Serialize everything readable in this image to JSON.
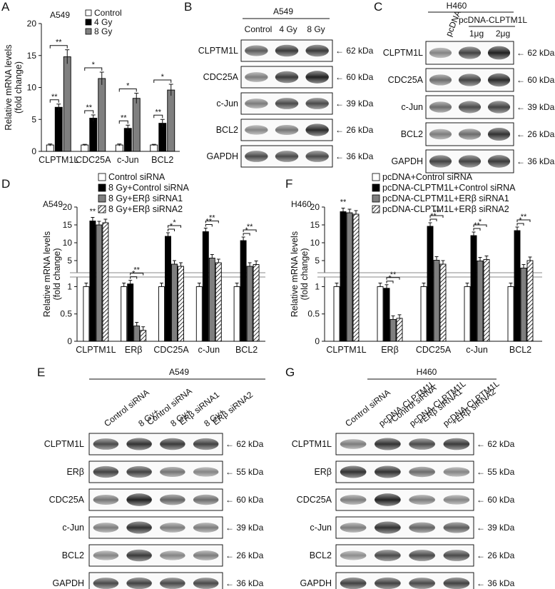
{
  "panel_letters": [
    "A",
    "B",
    "C",
    "D",
    "E",
    "F",
    "G"
  ],
  "chart_data": [
    {
      "panel": "A",
      "type": "bar",
      "cell_line": "A549",
      "ylabel": "Relative mRNA levels\n(fold change)",
      "categories": [
        "CLPTM1L",
        "CDC25A",
        "c-Jun",
        "BCL2"
      ],
      "ylim": [
        0,
        20
      ],
      "yticks": [
        0,
        5,
        10,
        15,
        20
      ],
      "series": [
        {
          "name": "Control",
          "color": "#ffffff",
          "values": [
            1.0,
            1.0,
            1.0,
            1.0
          ],
          "err": [
            0.15,
            0.1,
            0.15,
            0.1
          ]
        },
        {
          "name": "4 Gy",
          "color": "#000000",
          "values": [
            6.9,
            5.2,
            3.6,
            4.4
          ],
          "err": [
            0.5,
            0.5,
            0.5,
            0.6
          ]
        },
        {
          "name": "8 Gy",
          "color": "#7f7f7f",
          "values": [
            14.8,
            11.4,
            8.3,
            9.6
          ],
          "err": [
            1.1,
            1.0,
            0.8,
            0.9
          ]
        }
      ],
      "significance": [
        "**",
        "**",
        "**",
        "*",
        "**",
        "*",
        "**",
        "*"
      ]
    },
    {
      "panel": "D",
      "type": "bar",
      "cell_line": "A549",
      "ylabel": "Relative mRNA levels\n(fold change)",
      "categories": [
        "CLPTM1L",
        "ERβ",
        "CDC25A",
        "c-Jun",
        "BCL2"
      ],
      "broken_axis": true,
      "yticks_upper": [
        5,
        10,
        15,
        20
      ],
      "yticks_lower": [
        0,
        0.5,
        1
      ],
      "series": [
        {
          "name": "Control siRNA",
          "pattern": "white",
          "values": [
            1.0,
            1.0,
            1.0,
            1.0,
            1.0
          ]
        },
        {
          "name": "8 Gy+Control siRNA",
          "pattern": "black",
          "values": [
            16.1,
            1.05,
            11.8,
            13.1,
            10.6
          ]
        },
        {
          "name": "8 Gy+ERβ siRNA1",
          "pattern": "gray",
          "values": [
            15.0,
            0.28,
            4.0,
            5.7,
            3.4
          ]
        },
        {
          "name": "8 Gy+ERβ siRNA2",
          "pattern": "hatch",
          "values": [
            15.6,
            0.2,
            3.4,
            4.4,
            3.9
          ]
        }
      ],
      "significance": [
        "**",
        "*",
        "**",
        "*",
        "*",
        "**",
        "**",
        "*",
        "**",
        "*",
        "**"
      ]
    },
    {
      "panel": "F",
      "type": "bar",
      "cell_line": "H460",
      "ylabel": "Relative mRNA levels\n(fold change)",
      "categories": [
        "CLPTM1L",
        "ERβ",
        "CDC25A",
        "c-Jun",
        "BCL2"
      ],
      "broken_axis": true,
      "yticks_upper": [
        5,
        10,
        15,
        20
      ],
      "yticks_lower": [
        0,
        0.5,
        1
      ],
      "series": [
        {
          "name": "pcDNA+Control siRNA",
          "pattern": "white",
          "values": [
            1.0,
            1.0,
            1.0,
            1.0,
            1.0
          ]
        },
        {
          "name": "pcDNA-CLPTM1L+Control siRNA",
          "pattern": "black",
          "values": [
            18.7,
            0.97,
            14.6,
            12.0,
            13.4
          ]
        },
        {
          "name": "pcDNA-CLPTM1L+ERβ siRNA1",
          "pattern": "gray",
          "values": [
            18.4,
            0.4,
            5.1,
            4.9,
            2.9
          ]
        },
        {
          "name": "pcDNA-CLPTM1L+ERβ siRNA2",
          "pattern": "hatch",
          "values": [
            18.0,
            0.42,
            4.0,
            5.3,
            5.0
          ]
        }
      ],
      "significance": [
        "**",
        "*",
        "**",
        "**",
        "**",
        "**",
        "*",
        "*",
        "**",
        "*",
        "*"
      ]
    }
  ],
  "blots": {
    "B": {
      "cell_line": "A549",
      "lanes": [
        "Control",
        "4 Gy",
        "8 Gy"
      ],
      "proteins": [
        {
          "name": "CLPTM1L",
          "kda": "← 62 kDa"
        },
        {
          "name": "CDC25A",
          "kda": "← 60 kDa"
        },
        {
          "name": "c-Jun",
          "kda": "← 39 kDa"
        },
        {
          "name": "BCL2",
          "kda": "← 26 kDa"
        },
        {
          "name": "GAPDH",
          "kda": "← 36 kDa"
        }
      ]
    },
    "C": {
      "cell_line": "H460",
      "lane1": "pcDNA",
      "group": "pcDNA-CLPTM1L",
      "sublanes": [
        "1μg",
        "2μg"
      ],
      "proteins": [
        {
          "name": "CLPTM1L",
          "kda": "← 62 kDa"
        },
        {
          "name": "CDC25A",
          "kda": "← 60 kDa"
        },
        {
          "name": "c-Jun",
          "kda": "← 39 kDa"
        },
        {
          "name": "BCL2",
          "kda": "← 26 kDa"
        },
        {
          "name": "GAPDH",
          "kda": "← 36 kDa"
        }
      ]
    },
    "E": {
      "cell_line": "A549",
      "lanes": [
        [
          "Control siRNA"
        ],
        [
          "8 Gy+",
          "Control siRNA"
        ],
        [
          "8 Gy+",
          "ERβ siRNA1"
        ],
        [
          "8 Gy+",
          "ERβ siRNA2"
        ]
      ],
      "proteins": [
        {
          "name": "CLPTM1L",
          "kda": "← 62 kDa"
        },
        {
          "name": "ERβ",
          "kda": "← 55 kDa"
        },
        {
          "name": "CDC25A",
          "kda": "← 60 kDa"
        },
        {
          "name": "c-Jun",
          "kda": "← 39 kDa"
        },
        {
          "name": "BCL2",
          "kda": "← 26 kDa"
        },
        {
          "name": "GAPDH",
          "kda": "← 36 kDa"
        }
      ]
    },
    "G": {
      "cell_line": "H460",
      "lanes": [
        [
          "Control siRNA"
        ],
        [
          "pcDNA-CLPTM1L",
          "+Control siRNA"
        ],
        [
          "pcDNA-CLPTM1L",
          "+ERβ siRNA1"
        ],
        [
          "pcDNA-CLPTM1L",
          "+ERβ siRNA2"
        ]
      ],
      "proteins": [
        {
          "name": "CLPTM1L",
          "kda": "← 62 kDa"
        },
        {
          "name": "ERβ",
          "kda": "← 55 kDa"
        },
        {
          "name": "CDC25A",
          "kda": "← 60 kDa"
        },
        {
          "name": "c-Jun",
          "kda": "← 39 kDa"
        },
        {
          "name": "BCL2",
          "kda": "← 26 kDa"
        },
        {
          "name": "GAPDH",
          "kda": "← 36 kDa"
        }
      ]
    }
  }
}
